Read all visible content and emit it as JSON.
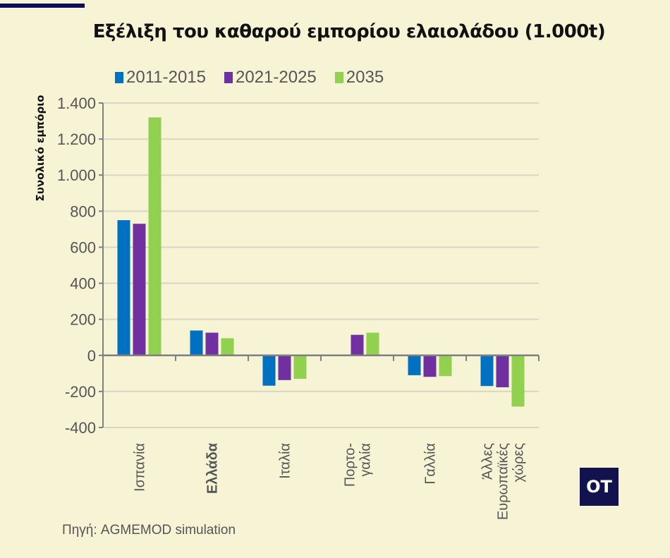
{
  "chart_data": {
    "type": "bar",
    "title": "Εξέλιξη του καθαρού εμπορίου ελαιολάδου (1.000t)",
    "ylabel": "Συνολικό εμπόριο",
    "xlabel": "",
    "categories": [
      "Ισπανία",
      "Ελλάδα",
      "Ιταλία",
      "Πορτο-γαλία",
      "Γαλλία",
      "Άλλες Ευρωπαϊκές χώρες"
    ],
    "category_lines": [
      [
        "Ισπανία"
      ],
      [
        "Ελλάδα"
      ],
      [
        "Ιταλία"
      ],
      [
        "Πορτο-",
        "γαλία"
      ],
      [
        "Γαλλία"
      ],
      [
        "Άλλες",
        "Ευρωπαϊκές",
        "χώρες"
      ]
    ],
    "bold_category": "Ελλάδα",
    "series": [
      {
        "name": "2011-2015",
        "color": "#0070c0",
        "values": [
          750,
          138,
          -168,
          5,
          -110,
          -170
        ]
      },
      {
        "name": "2021-2025",
        "color": "#7030a0",
        "values": [
          730,
          126,
          -137,
          114,
          -119,
          -177
        ]
      },
      {
        "name": "2035",
        "color": "#92d050",
        "values": [
          1320,
          95,
          -130,
          126,
          -115,
          -284
        ]
      }
    ],
    "ylim": [
      -400,
      1400
    ],
    "yticks": [
      1400,
      1200,
      1000,
      800,
      600,
      400,
      200,
      0,
      -200,
      -400
    ],
    "ytick_labels": [
      "1.400",
      "1.200",
      "1.000",
      "800",
      "600",
      "400",
      "200",
      "0",
      "-200",
      "-400"
    ],
    "grid": true,
    "legend_position": "top"
  },
  "source": "Πηγή:  AGMEMOD simulation",
  "logo": "OT"
}
